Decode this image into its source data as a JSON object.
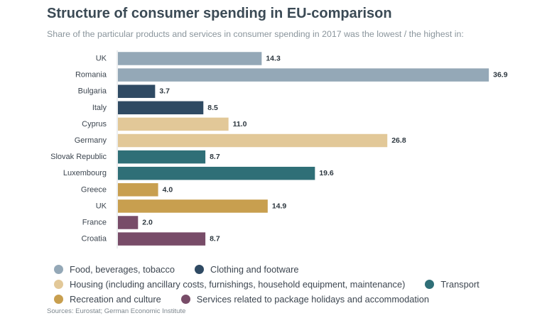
{
  "title": "Structure of consumer spending in EU-comparison",
  "subtitle": "Share of the particular products and services in consumer spending in 2017 was the lowest / the highest in:",
  "source": "Sources: Eurostat; German Economic Institute",
  "colors": {
    "food": "#94a8b7",
    "clothing": "#2f4a63",
    "housing": "#e2c898",
    "transport": "#2f6f77",
    "recreation": "#c89f4f",
    "services": "#784c68"
  },
  "legend": [
    {
      "key": "food",
      "label": "Food, beverages, tobacco",
      "row": 0
    },
    {
      "key": "clothing",
      "label": "Clothing and footware",
      "row": 0
    },
    {
      "key": "housing",
      "label": "Housing (including ancillary costs, furnishings, household equipment, maintenance)",
      "row": 1
    },
    {
      "key": "transport",
      "label": "Transport",
      "row": 1
    },
    {
      "key": "recreation",
      "label": "Recreation and culture",
      "row": 2
    },
    {
      "key": "services",
      "label": "Services related to package holidays and accommodation",
      "row": 2
    }
  ],
  "chart_data": {
    "type": "bar",
    "orientation": "horizontal",
    "title": "Structure of consumer spending in EU-comparison",
    "subtitle": "Share of the particular products and services in consumer spending in 2017 was the lowest / the highest in:",
    "xlim": [
      0,
      40
    ],
    "grid": false,
    "legend_position": "bottom",
    "categories": [
      "UK",
      "Romania",
      "Bulgaria",
      "Italy",
      "Cyprus",
      "Germany",
      "Slovak Republic",
      "Luxembourg",
      "Greece",
      "UK",
      "France",
      "Croatia"
    ],
    "values": [
      14.3,
      36.9,
      3.7,
      8.5,
      11.0,
      26.8,
      8.7,
      19.6,
      4.0,
      14.9,
      2.0,
      8.7
    ],
    "value_labels": [
      "14.3",
      "36.9",
      "3.7",
      "8.5",
      "11.0",
      "26.8",
      "8.7",
      "19.6",
      "4.0",
      "14.9",
      "2.0",
      "8.7"
    ],
    "groups": [
      "food",
      "food",
      "clothing",
      "clothing",
      "housing",
      "housing",
      "transport",
      "transport",
      "recreation",
      "recreation",
      "services",
      "services"
    ]
  }
}
